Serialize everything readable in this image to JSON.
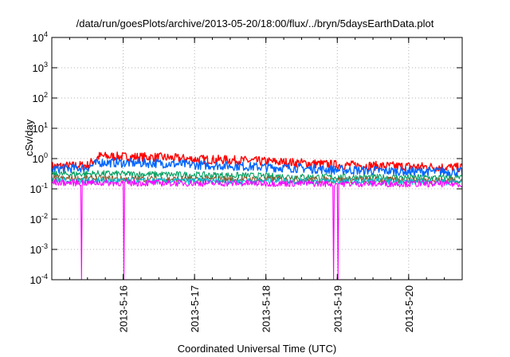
{
  "chart_data": {
    "type": "line",
    "title": "/data/run/goesPlots/archive/2013-05-20/18:00/flux/../bryn/5daysEarthData.plot",
    "xlabel": "Coordinated Universal Time (UTC)",
    "ylabel": "cSv/day",
    "y_scale": "log",
    "ylim": [
      0.0001,
      10000
    ],
    "y_ticks": [
      {
        "value": 0.0001,
        "base": "10",
        "exp": "-4"
      },
      {
        "value": 0.001,
        "base": "10",
        "exp": "-3"
      },
      {
        "value": 0.01,
        "base": "10",
        "exp": "-2"
      },
      {
        "value": 0.1,
        "base": "10",
        "exp": "-1"
      },
      {
        "value": 1,
        "base": "10",
        "exp": "0"
      },
      {
        "value": 10,
        "base": "10",
        "exp": "1"
      },
      {
        "value": 100,
        "base": "10",
        "exp": "2"
      },
      {
        "value": 1000,
        "base": "10",
        "exp": "3"
      },
      {
        "value": 10000,
        "base": "10",
        "exp": "4"
      }
    ],
    "xlim": [
      "2013-05-15 00:00",
      "2013-05-20 18:00"
    ],
    "x_ticks": [
      "2013-5-16",
      "2013-5-17",
      "2013-5-18",
      "2013-5-19",
      "2013-5-20"
    ],
    "grid": true,
    "legend": "none",
    "series": [
      {
        "color": "#ff0000",
        "x": [
          "2013-05-15 00:00",
          "2013-05-15 12:00",
          "2013-05-15 16:00",
          "2013-05-16 00:00",
          "2013-05-16 12:00",
          "2013-05-17 00:00",
          "2013-05-17 12:00",
          "2013-05-18 00:00",
          "2013-05-18 12:00",
          "2013-05-19 00:00",
          "2013-05-19 12:00",
          "2013-05-20 00:00",
          "2013-05-20 12:00",
          "2013-05-20 18:00"
        ],
        "values": [
          0.55,
          0.6,
          1.2,
          1.15,
          1.1,
          0.95,
          0.9,
          0.8,
          0.72,
          0.62,
          0.58,
          0.55,
          0.52,
          0.5
        ]
      },
      {
        "color": "#0066ff",
        "x": [
          "2013-05-15 00:00",
          "2013-05-15 12:00",
          "2013-05-15 16:00",
          "2013-05-16 00:00",
          "2013-05-16 12:00",
          "2013-05-17 00:00",
          "2013-05-17 12:00",
          "2013-05-18 00:00",
          "2013-05-18 12:00",
          "2013-05-19 00:00",
          "2013-05-19 12:00",
          "2013-05-20 00:00",
          "2013-05-20 12:00",
          "2013-05-20 18:00"
        ],
        "values": [
          0.45,
          0.5,
          0.75,
          0.72,
          0.7,
          0.62,
          0.58,
          0.52,
          0.48,
          0.42,
          0.4,
          0.38,
          0.37,
          0.36
        ]
      },
      {
        "color": "#00a060",
        "x": [
          "2013-05-15 00:00",
          "2013-05-15 16:00",
          "2013-05-16 12:00",
          "2013-05-17 12:00",
          "2013-05-18 12:00",
          "2013-05-19 12:00",
          "2013-05-20 18:00"
        ],
        "values": [
          0.3,
          0.32,
          0.3,
          0.28,
          0.25,
          0.24,
          0.23
        ]
      },
      {
        "color": "#8b5a2b",
        "x": [
          "2013-05-15 00:00",
          "2013-05-16 12:00",
          "2013-05-18 12:00",
          "2013-05-20 18:00"
        ],
        "values": [
          0.22,
          0.21,
          0.2,
          0.19
        ]
      },
      {
        "color": "#00bcd4",
        "x": [
          "2013-05-15 00:00",
          "2013-05-16 12:00",
          "2013-05-18 12:00",
          "2013-05-20 18:00"
        ],
        "values": [
          0.19,
          0.18,
          0.18,
          0.17
        ]
      },
      {
        "color": "#ff00ff",
        "x": [
          "2013-05-15 00:00",
          "2013-05-16 12:00",
          "2013-05-18 12:00",
          "2013-05-20 18:00"
        ],
        "values": [
          0.16,
          0.155,
          0.15,
          0.145
        ],
        "dropouts": [
          "2013-05-15 10:00",
          "2013-05-16 00:10",
          "2013-05-18 22:40",
          "2013-05-19 00:10"
        ]
      }
    ]
  }
}
